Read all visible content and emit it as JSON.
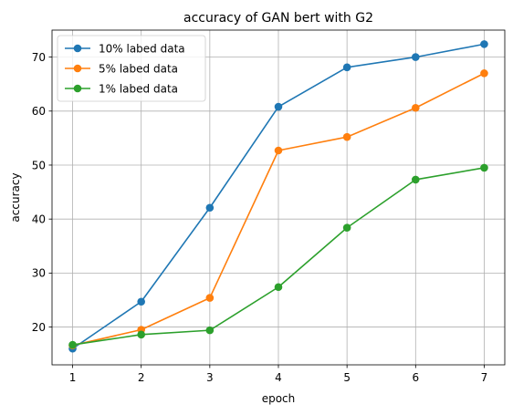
{
  "chart_data": {
    "type": "line",
    "title": "accuracy of GAN bert with G2",
    "xlabel": "epoch",
    "ylabel": "accuracy",
    "x": [
      1,
      2,
      3,
      4,
      5,
      6,
      7
    ],
    "xlim": [
      0.7,
      7.3
    ],
    "ylim": [
      13.0,
      75.0
    ],
    "xticks": [
      1,
      2,
      3,
      4,
      5,
      6,
      7
    ],
    "yticks": [
      20,
      30,
      40,
      50,
      60,
      70
    ],
    "grid": true,
    "legend_position": "top-left",
    "series": [
      {
        "name": "10% labed data",
        "color": "#1f77b4",
        "values": [
          16.0,
          24.7,
          42.1,
          60.8,
          68.1,
          70.0,
          72.4
        ]
      },
      {
        "name": "5% labed data",
        "color": "#ff7f0e",
        "values": [
          16.6,
          19.5,
          25.4,
          52.7,
          55.2,
          60.6,
          67.0
        ]
      },
      {
        "name": "1% labed data",
        "color": "#2ca02c",
        "values": [
          16.7,
          18.6,
          19.4,
          27.4,
          38.4,
          47.3,
          49.5
        ]
      }
    ]
  }
}
